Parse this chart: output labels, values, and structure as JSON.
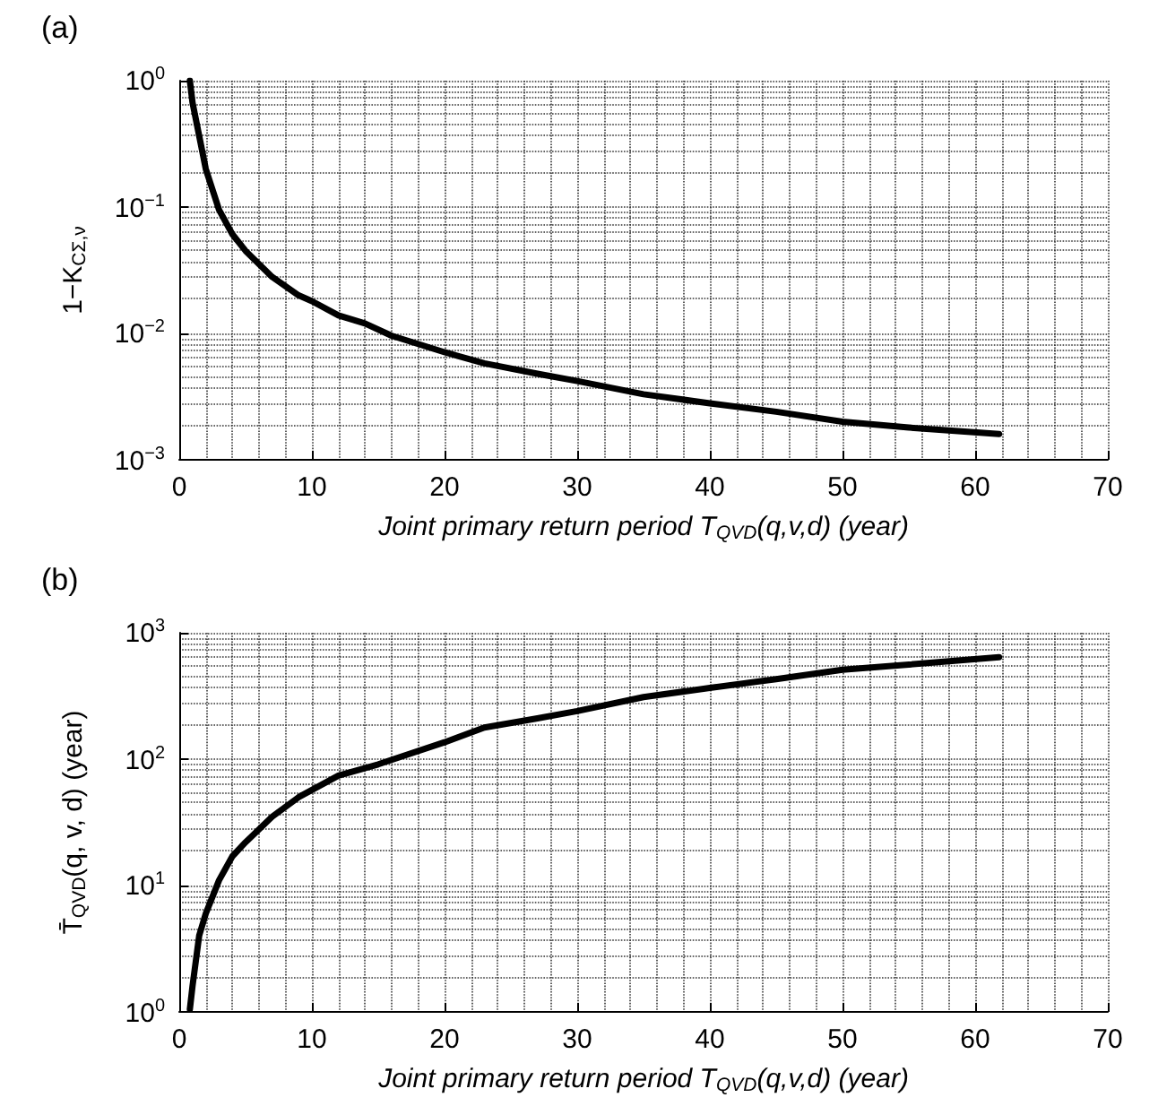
{
  "chart_data": [
    {
      "type": "line",
      "title": "(a)",
      "xlabel": "Joint primary return period T$_{QVD}$(q,v,d) (year)",
      "ylabel": "1−K$_{CΣ,ν}$",
      "x": [
        0.8,
        1,
        2,
        3,
        4,
        5,
        7,
        9,
        10,
        12,
        14,
        16,
        20,
        23,
        27,
        30,
        35,
        40,
        45,
        50,
        55,
        61.8
      ],
      "series": [
        {
          "color": "#000000",
          "values": [
            1.0,
            0.67,
            0.2,
            0.095,
            0.061,
            0.045,
            0.028,
            0.02,
            0.018,
            0.0139,
            0.012,
            0.0096,
            0.0071,
            0.0058,
            0.0048,
            0.0042,
            0.0033,
            0.0028,
            0.0024,
            0.002,
            0.0018,
            0.0016
          ]
        }
      ],
      "xlim": [
        0,
        70
      ],
      "xticks": [
        0,
        10,
        20,
        30,
        40,
        50,
        60,
        70
      ],
      "ylim": [
        0.001,
        1
      ],
      "yticks": [
        {
          "value": 0.001,
          "label": "10$^{−3}$"
        },
        {
          "value": 0.01,
          "label": "10$^{−2}$"
        },
        {
          "value": 0.1,
          "label": "10$^{−1}$"
        },
        {
          "value": 1,
          "label": "10$^{0}$"
        }
      ],
      "log": "y",
      "grid": true,
      "marker": "none",
      "line_style": "solid"
    },
    {
      "type": "line",
      "title": "(b)",
      "xlabel": "Joint primary return period T$_{QVD}$(q,v,d) (year)",
      "ylabel": "T̄$_{QVD}$(q, v, d) (year)",
      "x": [
        0.8,
        1,
        1.5,
        2,
        3,
        4,
        5,
        7,
        9,
        10,
        12,
        15,
        20,
        23,
        27,
        30,
        35,
        40,
        45,
        50,
        55,
        61.8
      ],
      "series": [
        {
          "color": "#000000",
          "values": [
            1.05,
            1.6,
            4,
            6,
            11,
            17,
            22,
            35,
            50,
            57,
            74,
            91,
            136,
            178,
            210,
            240,
            310,
            366,
            430,
            510,
            560,
            640
          ]
        }
      ],
      "xlim": [
        0,
        70
      ],
      "xticks": [
        0,
        10,
        20,
        30,
        40,
        50,
        60,
        70
      ],
      "ylim": [
        1,
        1000
      ],
      "yticks": [
        {
          "value": 1,
          "label": "10$^{0}$"
        },
        {
          "value": 10,
          "label": "10$^{1}$"
        },
        {
          "value": 100,
          "label": "10$^{2}$"
        },
        {
          "value": 1000,
          "label": "10$^{3}$"
        }
      ],
      "log": "y",
      "grid": true,
      "marker": "none",
      "line_style": "solid"
    }
  ]
}
